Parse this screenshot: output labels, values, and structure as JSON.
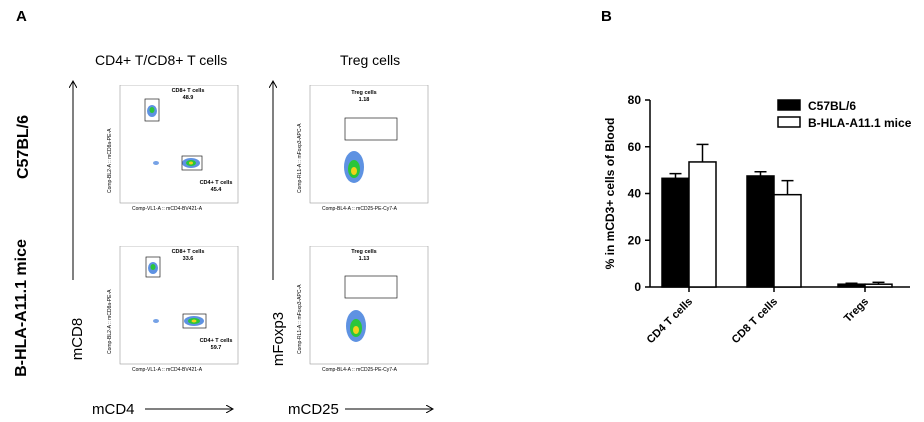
{
  "panelA": {
    "letter": "A",
    "col_titles": [
      "CD4+ T/CD8+ T cells",
      "Treg cells"
    ],
    "row_labels": [
      "C57BL/6",
      "B-HLA-A11.1 mice"
    ],
    "axis_names": {
      "cd8": "mCD8",
      "foxp3": "mFoxp3",
      "cd4": "mCD4",
      "cd25": "mCD25"
    },
    "plots": [
      {
        "gate1_name": "CD8+ T cells",
        "gate1_value": "48.9",
        "gate2_name": "CD4+ T cells",
        "gate2_value": "45.4",
        "xlab": "Comp-VL1-A :: mCD4-BV421-A",
        "ylab": "Comp-BL2-A :: mCD8a-PE-A"
      },
      {
        "gate1_name": "Treg cells",
        "gate1_value": "1.18",
        "xlab": "Comp-BL4-A :: mCD25-PE-Cy7-A",
        "ylab": "Comp-RL1-A :: mFoxp3-APC-A"
      },
      {
        "gate1_name": "CD8+ T cells",
        "gate1_value": "33.6",
        "gate2_name": "CD4+ T cells",
        "gate2_value": "59.7",
        "xlab": "Comp-VL1-A :: mCD4-BV421-A",
        "ylab": "Comp-BL2-A :: mCD8a-PE-A"
      },
      {
        "gate1_name": "Treg cells",
        "gate1_value": "1.13",
        "xlab": "Comp-BL4-A :: mCD25-PE-Cy7-A",
        "ylab": "Comp-RL1-A :: mFoxp3-APC-A"
      }
    ]
  },
  "panelB": {
    "letter": "B"
  },
  "chart_data": {
    "type": "bar",
    "categories": [
      "CD4 T cells",
      "CD8 T cells",
      "Tregs"
    ],
    "series": [
      {
        "name": "C57BL/6",
        "fill": "#000000",
        "values": [
          46.5,
          47.5,
          1.2
        ],
        "errors": [
          2,
          1.8,
          0.4
        ]
      },
      {
        "name": "B-HLA-A11.1 mice",
        "fill": "#ffffff",
        "values": [
          53.5,
          39.5,
          1.2
        ],
        "errors": [
          7.5,
          6,
          0.8
        ]
      }
    ],
    "ylabel": "% in mCD3+ cells of Blood",
    "xlabel": "",
    "ylim": [
      0,
      80
    ],
    "yticks": [
      "0",
      "20",
      "40",
      "60",
      "80"
    ],
    "legend": "top-right"
  }
}
